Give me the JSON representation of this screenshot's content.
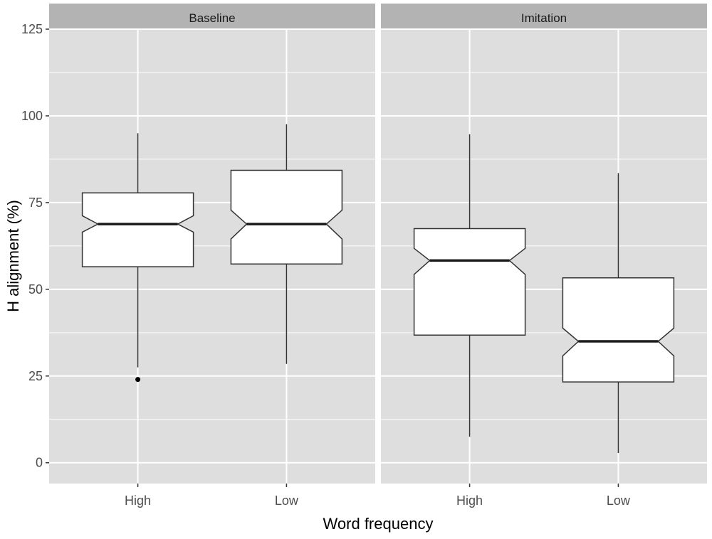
{
  "chart_data": {
    "type": "boxplot",
    "facets": [
      "Baseline",
      "Imitation"
    ],
    "categories": [
      "High",
      "Low"
    ],
    "xlabel": "Word frequency",
    "ylabel": "H alignment (%)",
    "ylim": [
      -6,
      125
    ],
    "yticks": [
      0,
      25,
      50,
      75,
      100,
      125
    ],
    "notched": true,
    "grid": true,
    "colors": {
      "panel": "#dedede",
      "strip": "#b3b3b3",
      "grid": "#ffffff",
      "box_fill": "#ffffff",
      "box_line": "#333333",
      "median": "#1a1a1a"
    },
    "boxes": [
      {
        "facet": "Baseline",
        "category": "High",
        "whisker_low": 27.5,
        "q1": 56.5,
        "notch_low": 66.5,
        "median": 68.8,
        "notch_high": 71.2,
        "q3": 77.8,
        "whisker_high": 95,
        "outliers": [
          24
        ]
      },
      {
        "facet": "Baseline",
        "category": "Low",
        "whisker_low": 28.5,
        "q1": 57.3,
        "notch_low": 64.5,
        "median": 68.8,
        "notch_high": 72.8,
        "q3": 84.3,
        "whisker_high": 97.6,
        "outliers": []
      },
      {
        "facet": "Imitation",
        "category": "High",
        "whisker_low": 7.5,
        "q1": 36.8,
        "notch_low": 54.3,
        "median": 58.3,
        "notch_high": 61.8,
        "q3": 67.5,
        "whisker_high": 94.7,
        "outliers": []
      },
      {
        "facet": "Imitation",
        "category": "Low",
        "whisker_low": 2.8,
        "q1": 23.3,
        "notch_low": 30.8,
        "median": 35,
        "notch_high": 38.8,
        "q3": 53.3,
        "whisker_high": 83.5,
        "outliers": []
      }
    ]
  }
}
